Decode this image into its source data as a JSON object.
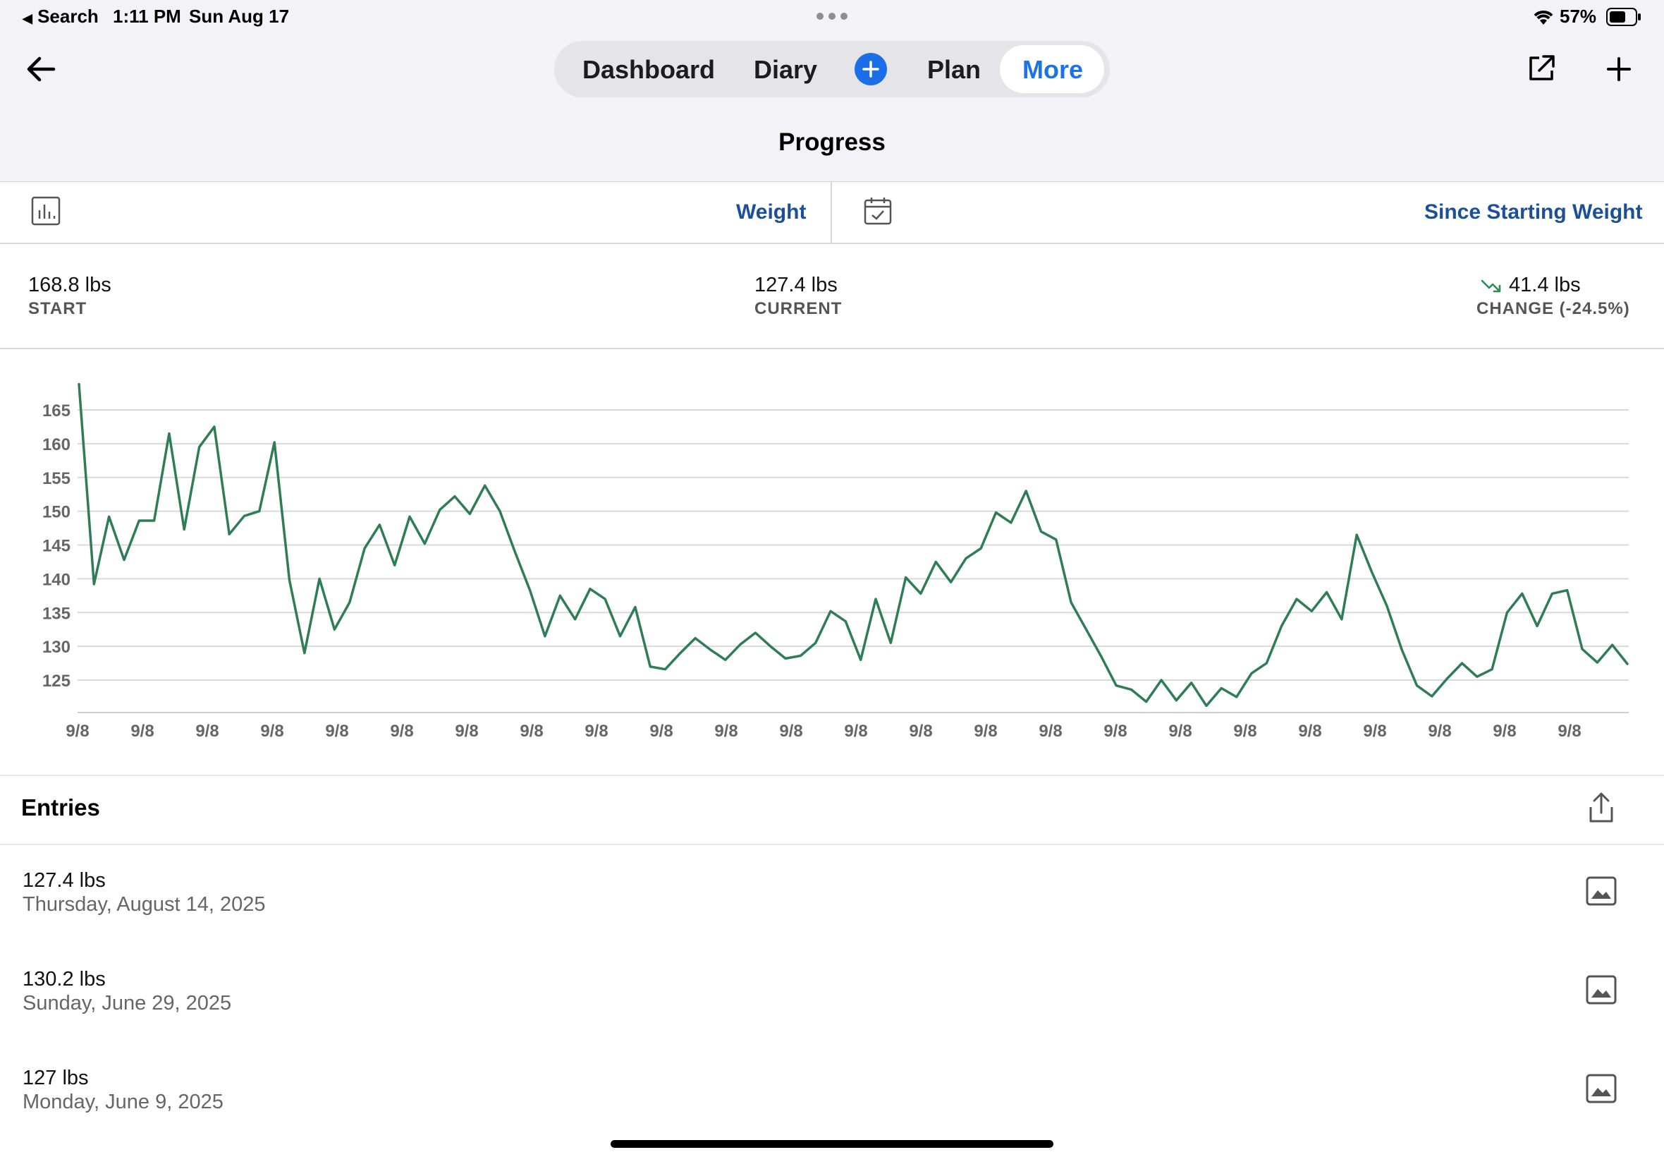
{
  "status_bar": {
    "back_app": "Search",
    "time": "1:11 PM",
    "date": "Sun Aug 17",
    "battery": "57%"
  },
  "nav": {
    "tabs": [
      {
        "label": "Dashboard"
      },
      {
        "label": "Diary"
      },
      {
        "label": "Plan"
      },
      {
        "label": "More"
      }
    ],
    "active_tab": "More",
    "title": "Progress"
  },
  "selectors": {
    "metric": "Weight",
    "range": "Since Starting Weight"
  },
  "summary": {
    "start": {
      "value": "168.8 lbs",
      "caption": "START"
    },
    "current": {
      "value": "127.4 lbs",
      "caption": "CURRENT"
    },
    "change": {
      "value": "41.4 lbs",
      "caption": "CHANGE (-24.5%)"
    }
  },
  "chart_data": {
    "type": "line",
    "y_ticks": [
      125,
      130,
      135,
      140,
      145,
      150,
      155,
      160,
      165
    ],
    "x_tick_labels": [
      "9/8",
      "9/8",
      "9/8",
      "9/8",
      "9/8",
      "9/8",
      "9/8",
      "9/8",
      "9/8",
      "9/8",
      "9/8",
      "9/8",
      "9/8",
      "9/8",
      "9/8",
      "9/8",
      "9/8",
      "9/8",
      "9/8",
      "9/8",
      "9/8",
      "9/8",
      "9/8",
      "9/8"
    ],
    "ylim": [
      120,
      170
    ],
    "grid": true,
    "line_color": "#2e7d55",
    "values": [
      168.8,
      139.2,
      149.2,
      142.8,
      148.6,
      148.6,
      161.5,
      147.3,
      159.5,
      162.5,
      146.6,
      149.3,
      150.0,
      160.2,
      139.8,
      129.0,
      140.0,
      132.5,
      136.5,
      144.5,
      148.0,
      142.0,
      149.2,
      145.2,
      150.2,
      152.2,
      149.6,
      153.8,
      150.0,
      144.0,
      138.3,
      131.5,
      137.5,
      134.0,
      138.5,
      137.0,
      131.5,
      135.8,
      127.0,
      126.6,
      129.0,
      131.2,
      129.5,
      128.0,
      130.3,
      132.0,
      130.0,
      128.2,
      128.6,
      130.5,
      135.2,
      133.7,
      128.0,
      137.0,
      130.5,
      140.2,
      137.8,
      142.5,
      139.5,
      143.0,
      144.5,
      149.8,
      148.3,
      153.0,
      147.0,
      145.8,
      136.5,
      132.5,
      128.5,
      124.2,
      123.6,
      121.8,
      125.0,
      122.0,
      124.6,
      121.2,
      123.8,
      122.5,
      126.0,
      127.5,
      133.0,
      137.0,
      135.2,
      138.0,
      134.0,
      146.5,
      141.0,
      136.0,
      129.5,
      124.2,
      122.6,
      125.2,
      127.5,
      125.5,
      126.6,
      135.0,
      137.8,
      133.0,
      137.8,
      138.3,
      129.6,
      127.6,
      130.2,
      127.4
    ]
  },
  "entries": {
    "title": "Entries",
    "items": [
      {
        "weight": "127.4 lbs",
        "date": "Thursday, August 14, 2025"
      },
      {
        "weight": "130.2 lbs",
        "date": "Sunday, June 29, 2025"
      },
      {
        "weight": "127 lbs",
        "date": "Monday, June 9, 2025"
      }
    ]
  }
}
